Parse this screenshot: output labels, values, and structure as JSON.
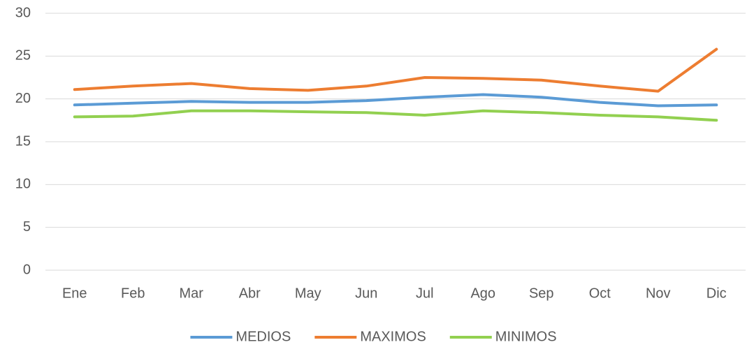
{
  "chart_data": {
    "type": "line",
    "categories": [
      "Ene",
      "Feb",
      "Mar",
      "Abr",
      "May",
      "Jun",
      "Jul",
      "Ago",
      "Sep",
      "Oct",
      "Nov",
      "Dic"
    ],
    "series": [
      {
        "name": "MEDIOS",
        "color": "#5b9bd5",
        "values": [
          19.3,
          19.5,
          19.7,
          19.6,
          19.6,
          19.8,
          20.2,
          20.5,
          20.2,
          19.6,
          19.2,
          19.3
        ]
      },
      {
        "name": "MAXIMOS",
        "color": "#ed7d31",
        "values": [
          21.1,
          21.5,
          21.8,
          21.2,
          21.0,
          21.5,
          22.5,
          22.4,
          22.2,
          21.5,
          20.9,
          25.8
        ]
      },
      {
        "name": "MINIMOS",
        "color": "#92d050",
        "values": [
          17.9,
          18.0,
          18.6,
          18.6,
          18.5,
          18.4,
          18.1,
          18.6,
          18.4,
          18.1,
          17.9,
          17.5
        ]
      }
    ],
    "ylim": [
      0,
      30
    ],
    "yticks": [
      0,
      5,
      10,
      15,
      20,
      25,
      30
    ],
    "grid": true,
    "legend": "bottom"
  }
}
